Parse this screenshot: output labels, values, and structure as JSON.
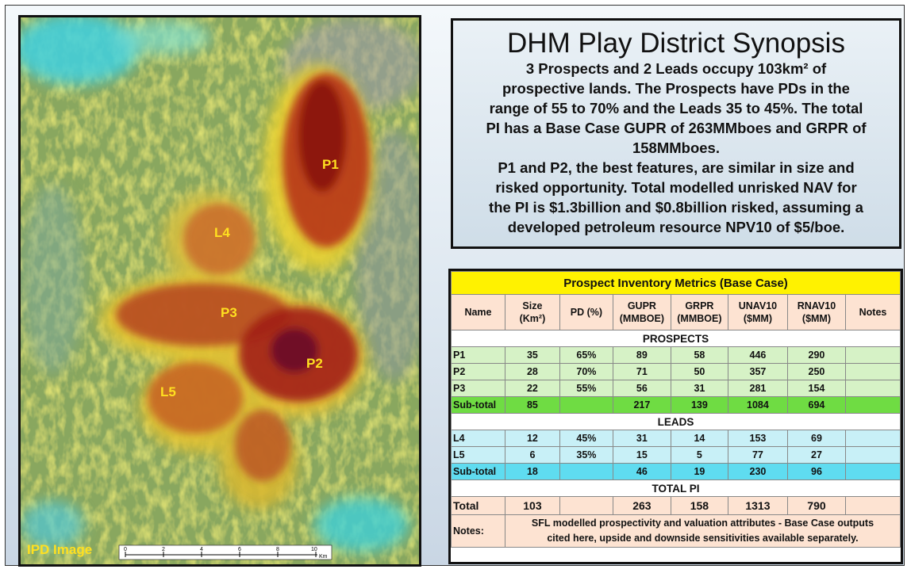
{
  "map": {
    "labels": [
      "P1",
      "L4",
      "P3",
      "P2",
      "L5"
    ],
    "caption": "IPD Image",
    "scale_ticks": [
      "0",
      "2",
      "4",
      "6",
      "8",
      "10"
    ],
    "scale_unit": "Km",
    "colors": {
      "label": "#ffe020",
      "hot": "#8a1010",
      "warm": "#c8501a",
      "base": "#7c9a53",
      "cool": "#3fd0e0"
    }
  },
  "synopsis": {
    "title": "DHM Play District Synopsis",
    "p1_lines": [
      "3 Prospects and 2 Leads occupy 103km² of",
      "prospective lands. The Prospects have PDs in the",
      "range of 55 to 70% and the Leads 35 to 45%. The total",
      "PI has a Base Case GUPR of 263MMboes and GRPR of",
      "158MMboes."
    ],
    "p2_lines": [
      "P1 and P2, the best features, are similar in size and",
      "risked opportunity. Total modelled unrisked NAV for",
      "the PI is $1.3billion and $0.8billion risked, assuming a",
      "developed petroleum resource NPV10 of $5/boe."
    ]
  },
  "table": {
    "title": "Prospect Inventory Metrics (Base Case)",
    "headers": [
      [
        "Name"
      ],
      [
        "Size",
        "(Km²)"
      ],
      [
        "PD (%)"
      ],
      [
        "GUPR",
        "(MMBOE)"
      ],
      [
        "GRPR",
        "(MMBOE)"
      ],
      [
        "UNAV10",
        "($MM)"
      ],
      [
        "RNAV10",
        "($MM)"
      ],
      [
        "Notes"
      ]
    ],
    "sections": {
      "prospects": "PROSPECTS",
      "leads": "LEADS",
      "total": "TOTAL PI"
    },
    "prospects": [
      [
        "P1",
        "35",
        "65%",
        "89",
        "58",
        "446",
        "290",
        ""
      ],
      [
        "P2",
        "28",
        "70%",
        "71",
        "50",
        "357",
        "250",
        ""
      ],
      [
        "P3",
        "22",
        "55%",
        "56",
        "31",
        "281",
        "154",
        ""
      ]
    ],
    "prospects_subtotal": [
      "Sub-total",
      "85",
      "",
      "217",
      "139",
      "1084",
      "694",
      ""
    ],
    "leads": [
      [
        "L4",
        "12",
        "45%",
        "31",
        "14",
        "153",
        "69",
        ""
      ],
      [
        "L5",
        "6",
        "35%",
        "15",
        "5",
        "77",
        "27",
        ""
      ]
    ],
    "leads_subtotal": [
      "Sub-total",
      "18",
      "",
      "46",
      "19",
      "230",
      "96",
      ""
    ],
    "total": [
      "Total",
      "103",
      "",
      "263",
      "158",
      "1313",
      "790",
      ""
    ],
    "notes_label": "Notes:",
    "notes_lines": [
      "SFL modelled prospectivity and valuation attributes - Base Case outputs",
      "cited here, upside and downside sensitivities available separately."
    ]
  }
}
